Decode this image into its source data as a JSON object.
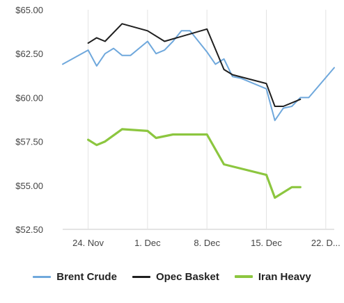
{
  "chart_data": {
    "type": "line",
    "title": "",
    "xlabel": "",
    "ylabel": "",
    "x_tick_labels": [
      "24. Nov",
      "1. Dec",
      "8. Dec",
      "15. Dec",
      "22. D..."
    ],
    "y_tick_labels": [
      "$52.50",
      "$55.00",
      "$57.50",
      "$60.00",
      "$62.50",
      "$65.00"
    ],
    "ylim": [
      52.5,
      65.0
    ],
    "grid": "vertical",
    "legend_position": "bottom",
    "series": [
      {
        "name": "Brent Crude",
        "color": "#6fa8dc",
        "points": [
          [
            "21. Nov",
            61.9
          ],
          [
            "24. Nov",
            62.7
          ],
          [
            "25. Nov",
            61.8
          ],
          [
            "26. Nov",
            62.5
          ],
          [
            "27. Nov",
            62.8
          ],
          [
            "28. Nov",
            62.4
          ],
          [
            "29. Nov",
            62.4
          ],
          [
            "1. Dec",
            63.2
          ],
          [
            "2. Dec",
            62.5
          ],
          [
            "3. Dec",
            62.7
          ],
          [
            "4. Dec",
            63.2
          ],
          [
            "5. Dec",
            63.8
          ],
          [
            "6. Dec",
            63.8
          ],
          [
            "8. Dec",
            62.6
          ],
          [
            "9. Dec",
            61.9
          ],
          [
            "10. Dec",
            62.2
          ],
          [
            "11. Dec",
            61.2
          ],
          [
            "12. Dec",
            61.1
          ],
          [
            "15. Dec",
            60.5
          ],
          [
            "16. Dec",
            58.7
          ],
          [
            "17. Dec",
            59.4
          ],
          [
            "18. Dec",
            59.5
          ],
          [
            "19. Dec",
            60.0
          ],
          [
            "20. Dec",
            60.0
          ],
          [
            "23. Dec",
            61.7
          ]
        ]
      },
      {
        "name": "Opec Basket",
        "color": "#1f1f1f",
        "points": [
          [
            "24. Nov",
            63.1
          ],
          [
            "25. Nov",
            63.4
          ],
          [
            "26. Nov",
            63.2
          ],
          [
            "28. Nov",
            64.2
          ],
          [
            "1. Dec",
            63.8
          ],
          [
            "3. Dec",
            63.2
          ],
          [
            "8. Dec",
            63.9
          ],
          [
            "10. Dec",
            61.6
          ],
          [
            "11. Dec",
            61.3
          ],
          [
            "15. Dec",
            60.8
          ],
          [
            "16. Dec",
            59.5
          ],
          [
            "17. Dec",
            59.5
          ],
          [
            "19. Dec",
            59.9
          ]
        ]
      },
      {
        "name": "Iran Heavy",
        "color": "#8cc63f",
        "points": [
          [
            "24. Nov",
            57.6
          ],
          [
            "25. Nov",
            57.3
          ],
          [
            "26. Nov",
            57.5
          ],
          [
            "28. Nov",
            58.2
          ],
          [
            "1. Dec",
            58.1
          ],
          [
            "2. Dec",
            57.7
          ],
          [
            "4. Dec",
            57.9
          ],
          [
            "8. Dec",
            57.9
          ],
          [
            "10. Dec",
            56.2
          ],
          [
            "15. Dec",
            55.6
          ],
          [
            "16. Dec",
            54.3
          ],
          [
            "18. Dec",
            54.9
          ],
          [
            "19. Dec",
            54.9
          ]
        ]
      }
    ]
  }
}
